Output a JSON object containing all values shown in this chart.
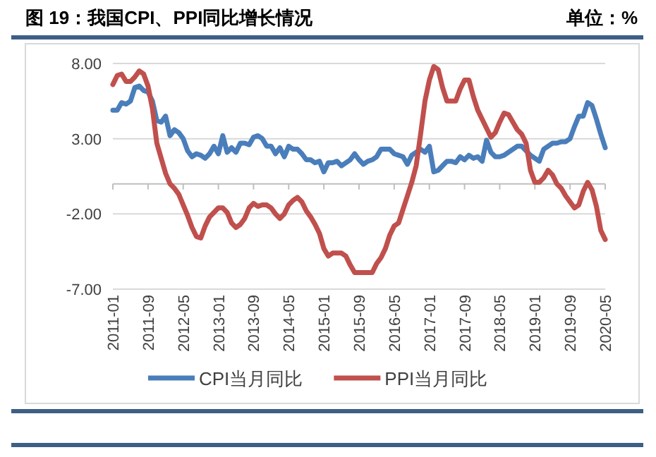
{
  "chart_data": {
    "type": "line",
    "title": "图 19：我国CPI、PPI同比增长情况",
    "subtitle": "单位：%",
    "categories": [
      "2011-01",
      null,
      null,
      null,
      null,
      null,
      null,
      null,
      "2011-09",
      null,
      null,
      null,
      null,
      null,
      null,
      null,
      "2012-05",
      null,
      null,
      null,
      null,
      null,
      null,
      null,
      "2013-01",
      null,
      null,
      null,
      null,
      null,
      null,
      null,
      "2013-09",
      null,
      null,
      null,
      null,
      null,
      null,
      null,
      "2014-05",
      null,
      null,
      null,
      null,
      null,
      null,
      null,
      "2015-01",
      null,
      null,
      null,
      null,
      null,
      null,
      null,
      "2015-09",
      null,
      null,
      null,
      null,
      null,
      null,
      null,
      "2016-05",
      null,
      null,
      null,
      null,
      null,
      null,
      null,
      "2017-01",
      null,
      null,
      null,
      null,
      null,
      null,
      null,
      "2017-09",
      null,
      null,
      null,
      null,
      null,
      null,
      null,
      "2018-05",
      null,
      null,
      null,
      null,
      null,
      null,
      null,
      "2019-01",
      null,
      null,
      null,
      null,
      null,
      null,
      null,
      "2019-09",
      null,
      null,
      null,
      null,
      null,
      null,
      null,
      "2020-05"
    ],
    "series": [
      {
        "name": "CPI当月同比",
        "color": "#4a7ebb",
        "values": [
          4.9,
          4.9,
          5.4,
          5.3,
          5.5,
          6.4,
          6.5,
          6.2,
          6.1,
          5.5,
          4.2,
          4.1,
          4.5,
          3.2,
          3.6,
          3.4,
          3.0,
          2.2,
          1.8,
          2.0,
          1.9,
          1.7,
          2.0,
          2.5,
          2.0,
          3.2,
          2.1,
          2.4,
          2.1,
          2.7,
          2.7,
          2.6,
          3.1,
          3.2,
          3.0,
          2.5,
          2.5,
          2.0,
          2.4,
          1.8,
          2.5,
          2.3,
          2.3,
          2.0,
          1.6,
          1.6,
          1.4,
          1.5,
          0.8,
          1.4,
          1.4,
          1.5,
          1.2,
          1.4,
          1.6,
          2.0,
          1.6,
          1.3,
          1.5,
          1.6,
          1.8,
          2.3,
          2.3,
          2.3,
          2.0,
          1.9,
          1.8,
          1.3,
          1.9,
          2.1,
          2.3,
          2.1,
          2.5,
          0.8,
          0.9,
          1.2,
          1.5,
          1.5,
          1.4,
          1.8,
          1.6,
          1.9,
          1.7,
          1.8,
          1.5,
          2.9,
          2.1,
          1.8,
          1.8,
          1.9,
          2.1,
          2.3,
          2.5,
          2.5,
          2.2,
          1.9,
          1.7,
          1.5,
          2.3,
          2.5,
          2.7,
          2.7,
          2.8,
          2.8,
          3.0,
          3.8,
          4.5,
          4.5,
          5.4,
          5.2,
          4.3,
          3.3,
          2.4
        ]
      },
      {
        "name": "PPI当月同比",
        "color": "#c0504d",
        "values": [
          6.6,
          7.2,
          7.3,
          6.8,
          6.8,
          7.1,
          7.5,
          7.3,
          6.5,
          5.0,
          2.7,
          1.7,
          0.7,
          0.0,
          -0.3,
          -0.7,
          -1.4,
          -2.1,
          -2.9,
          -3.5,
          -3.6,
          -2.8,
          -2.2,
          -1.9,
          -1.6,
          -1.6,
          -1.9,
          -2.6,
          -2.9,
          -2.7,
          -2.3,
          -1.6,
          -1.3,
          -1.5,
          -1.4,
          -1.4,
          -1.6,
          -2.0,
          -2.3,
          -2.0,
          -1.4,
          -1.1,
          -0.9,
          -1.2,
          -1.8,
          -2.2,
          -2.7,
          -3.3,
          -4.3,
          -4.8,
          -4.6,
          -4.6,
          -4.6,
          -4.8,
          -5.4,
          -5.9,
          -5.9,
          -5.9,
          -5.9,
          -5.9,
          -5.3,
          -4.9,
          -4.3,
          -3.4,
          -2.8,
          -2.6,
          -1.7,
          -0.8,
          0.1,
          1.2,
          3.3,
          5.5,
          6.9,
          7.8,
          7.6,
          6.4,
          5.5,
          5.5,
          5.5,
          6.3,
          6.9,
          6.9,
          5.8,
          4.9,
          4.3,
          3.7,
          3.1,
          3.4,
          4.1,
          4.7,
          4.6,
          4.1,
          3.6,
          3.3,
          2.7,
          0.9,
          0.1,
          0.1,
          0.4,
          0.9,
          0.6,
          0.0,
          -0.3,
          -0.8,
          -1.2,
          -1.6,
          -1.4,
          -0.5,
          0.1,
          -0.4,
          -1.5,
          -3.1,
          -3.7
        ]
      }
    ],
    "ylim": [
      -7,
      8
    ],
    "yticks": [
      {
        "value": 8,
        "label": "8.00"
      },
      {
        "value": 3,
        "label": "3.00"
      },
      {
        "value": -2,
        "label": "-2.00"
      },
      {
        "value": -7,
        "label": "-7.00"
      }
    ],
    "grid": "y",
    "legend": "bottom",
    "marker": "none",
    "line_style": "solid"
  }
}
